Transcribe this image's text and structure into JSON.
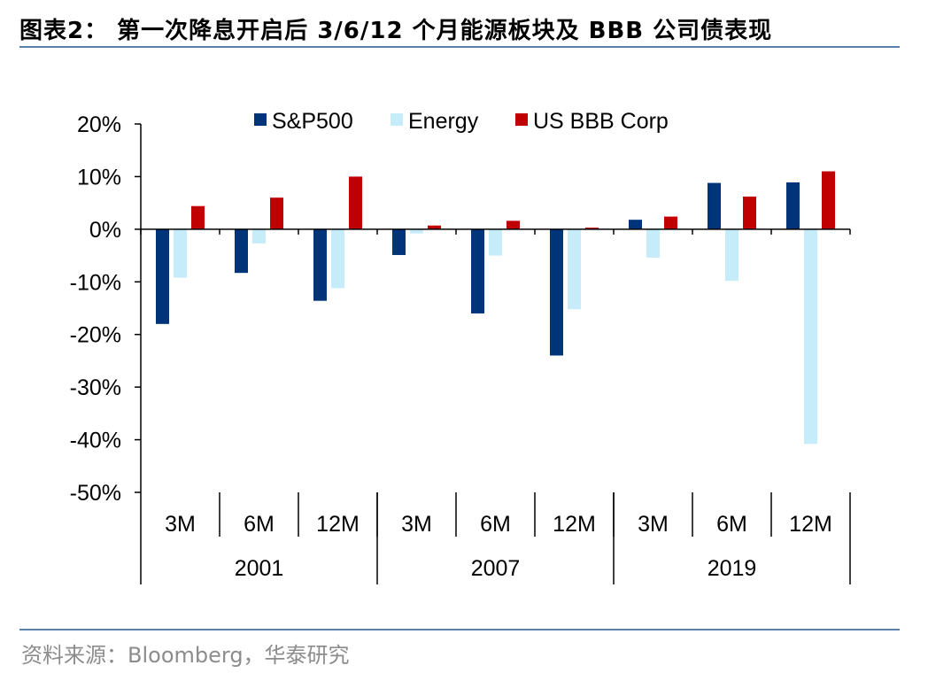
{
  "header": {
    "title": "图表2：  第一次降息开启后 3/6/12 个月能源板块及 BBB 公司债表现"
  },
  "footer": {
    "source": "资料来源：Bloomberg，华泰研究"
  },
  "colors": {
    "sp500": "#003479",
    "energy": "#c6ebf9",
    "bbb": "#c00000",
    "rule": "#5a7fa8",
    "source_text": "#8c8c8c"
  },
  "chart_data": {
    "type": "bar",
    "title": "",
    "xlabel": "",
    "ylabel": "",
    "ylim": [
      -50,
      20
    ],
    "y_ticks": [
      20,
      10,
      0,
      -10,
      -20,
      -30,
      -40,
      -50
    ],
    "y_tick_labels": [
      "20%",
      "10%",
      "0%",
      "-10%",
      "-20%",
      "-30%",
      "-40%",
      "-50%"
    ],
    "legend_position": "top",
    "grid": false,
    "groups": [
      {
        "label": "2001",
        "categories": [
          "3M",
          "6M",
          "12M"
        ]
      },
      {
        "label": "2007",
        "categories": [
          "3M",
          "6M",
          "12M"
        ]
      },
      {
        "label": "2019",
        "categories": [
          "3M",
          "6M",
          "12M"
        ]
      }
    ],
    "categories": [
      "3M",
      "6M",
      "12M",
      "3M",
      "6M",
      "12M",
      "3M",
      "6M",
      "12M"
    ],
    "series": [
      {
        "name": "S&P500",
        "color": "#003479",
        "values": [
          -18.0,
          -8.3,
          -13.6,
          -4.9,
          -16.0,
          -24.0,
          1.8,
          8.8,
          8.9
        ]
      },
      {
        "name": "Energy",
        "color": "#c6ebf9",
        "values": [
          -9.2,
          -2.7,
          -11.2,
          -0.8,
          -5.0,
          -15.2,
          -5.4,
          -9.8,
          -40.8
        ]
      },
      {
        "name": "US BBB Corp",
        "color": "#c00000",
        "values": [
          4.4,
          6.0,
          10.0,
          0.7,
          1.6,
          0.3,
          2.4,
          6.2,
          11.0
        ]
      }
    ]
  }
}
